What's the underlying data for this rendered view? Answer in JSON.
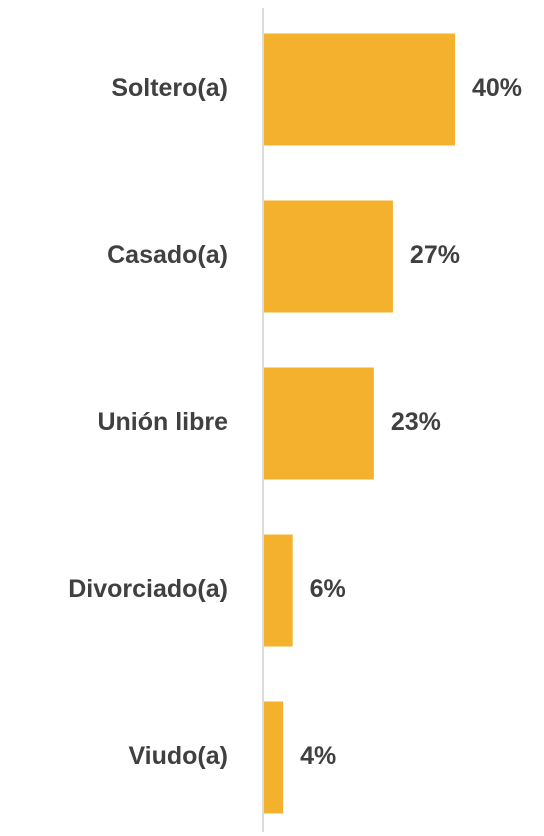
{
  "chart_data": {
    "type": "barh",
    "categories": [
      "Soltero(a)",
      "Casado(a)",
      "Unión libre",
      "Divorciado(a)",
      "Viudo(a)"
    ],
    "values": [
      40,
      27,
      23,
      6,
      4
    ],
    "value_labels": [
      "40%",
      "27%",
      "23%",
      "6%",
      "4%"
    ],
    "color": "#f4b12d"
  }
}
